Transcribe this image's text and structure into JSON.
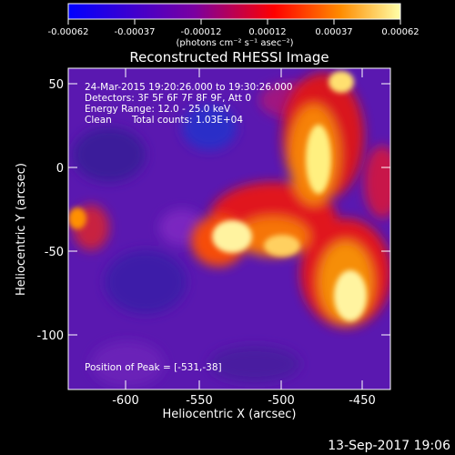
{
  "title": "Reconstructed RHESSI Image",
  "colorbar": {
    "ticks": [
      "-0.00062",
      "-0.00037",
      "-0.00012",
      "0.00012",
      "0.00037",
      "0.00062"
    ],
    "min": -0.00062,
    "max": 0.00062,
    "unit_label": "(photons cm⁻² s⁻¹ asec⁻²)",
    "colors": [
      "#0000ff",
      "#7a00a0",
      "#ff0000",
      "#ff8c00",
      "#ffff99"
    ]
  },
  "info": {
    "time_range": "24-Mar-2015 19:20:26.000 to 19:30:26.000",
    "detectors": "Detectors: 3F 5F 6F 7F 8F 9F, Att 0",
    "energy": "Energy Range: 12.0 - 25.0 keV",
    "clean": "Clean",
    "counts": "Total counts: 1.03E+04"
  },
  "peak_label": "Position of Peak = [-531,-38]",
  "x_axis": {
    "label": "Heliocentric X (arcsec)",
    "ticks": [
      "-600",
      "-550",
      "-500",
      "-450"
    ],
    "range": [
      -636,
      -436
    ]
  },
  "y_axis": {
    "label": "Heliocentric Y (arcsec)",
    "ticks": [
      "50",
      "0",
      "-50",
      "-100"
    ],
    "range": [
      -133,
      57
    ]
  },
  "footer_date": "13-Sep-2017 19:06"
}
